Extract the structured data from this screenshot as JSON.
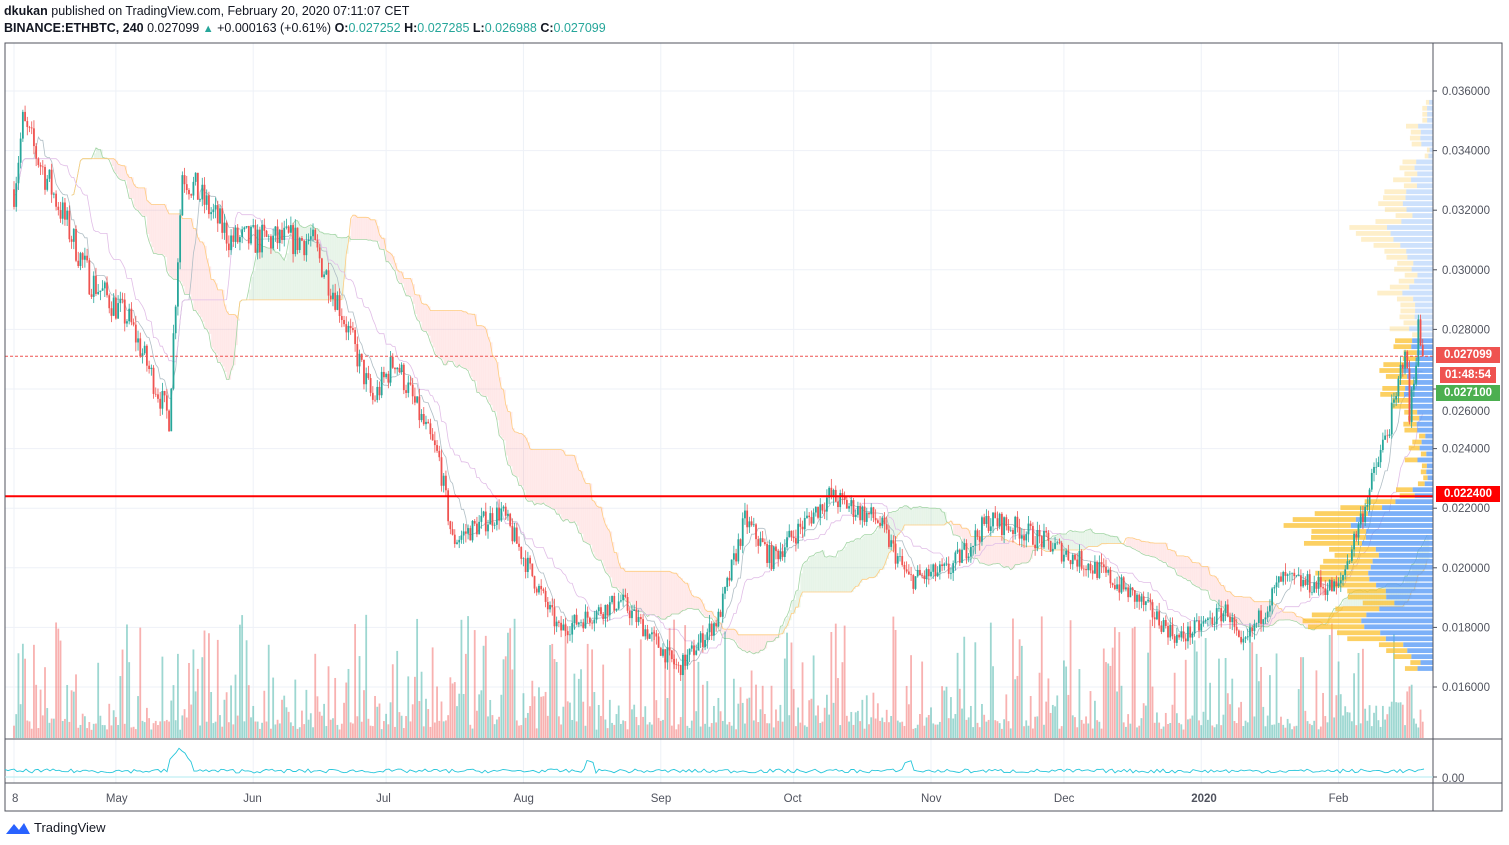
{
  "header": {
    "author": "dkukan",
    "published": "published on TradingView.com, February 20, 2020 07:11:07 CET",
    "symbol": "BINANCE:ETHBTC, 240",
    "last": "0.027099",
    "change": "+0.000163 (+0.61%)",
    "o_label": "O:",
    "o": "0.027252",
    "h_label": "H:",
    "h": "0.027285",
    "l_label": "L:",
    "l": "0.026988",
    "c_label": "C:",
    "c": "0.027099"
  },
  "tags": {
    "last_price": "0.027099",
    "countdown": "01:48:54",
    "level_green": "0.027100",
    "support_line": "0.022400"
  },
  "indicator": {
    "zero_label": "0.00"
  },
  "logo": {
    "text": "TradingView"
  },
  "colors": {
    "up": "#26a69a",
    "down": "#ef5350",
    "support": "#ff0000",
    "vp_up": "#5b9cf6",
    "vp_down": "#fbc02d"
  },
  "chart_data": {
    "type": "candlestick",
    "title": "BINANCE:ETHBTC, 240",
    "ylim": [
      0.0148,
      0.0375
    ],
    "yticks": [
      "0.016000",
      "0.018000",
      "0.020000",
      "0.022000",
      "0.024000",
      "0.026000",
      "0.028000",
      "0.030000",
      "0.032000",
      "0.034000",
      "0.036000"
    ],
    "xticks": [
      {
        "label": "8",
        "day": 0
      },
      {
        "label": "May",
        "day": 23
      },
      {
        "label": "Jun",
        "day": 54
      },
      {
        "label": "Jul",
        "day": 84
      },
      {
        "label": "Aug",
        "day": 115
      },
      {
        "label": "Sep",
        "day": 146
      },
      {
        "label": "Oct",
        "day": 176
      },
      {
        "label": "Nov",
        "day": 207
      },
      {
        "label": "Dec",
        "day": 237
      },
      {
        "label": "2020",
        "day": 268
      },
      {
        "label": "Feb",
        "day": 299
      }
    ],
    "x_unit": "days since 2019-04-08",
    "price_path": [
      [
        0,
        0.0327
      ],
      [
        2,
        0.0349
      ],
      [
        10,
        0.0322
      ],
      [
        17,
        0.0297
      ],
      [
        26,
        0.0283
      ],
      [
        35,
        0.025
      ],
      [
        38,
        0.0333
      ],
      [
        49,
        0.031
      ],
      [
        62,
        0.031
      ],
      [
        67,
        0.031
      ],
      [
        73,
        0.029
      ],
      [
        81,
        0.0256
      ],
      [
        86,
        0.027
      ],
      [
        96,
        0.0236
      ],
      [
        99,
        0.0209
      ],
      [
        110,
        0.0219
      ],
      [
        123,
        0.0179
      ],
      [
        137,
        0.0189
      ],
      [
        150,
        0.0166
      ],
      [
        159,
        0.0183
      ],
      [
        165,
        0.0216
      ],
      [
        171,
        0.0203
      ],
      [
        184,
        0.0224
      ],
      [
        195,
        0.0216
      ],
      [
        202,
        0.0196
      ],
      [
        211,
        0.0199
      ],
      [
        220,
        0.0216
      ],
      [
        227,
        0.0213
      ],
      [
        245,
        0.0199
      ],
      [
        254,
        0.0189
      ],
      [
        263,
        0.0176
      ],
      [
        274,
        0.0186
      ],
      [
        277,
        0.0172
      ],
      [
        286,
        0.0196
      ],
      [
        299,
        0.0193
      ],
      [
        306,
        0.0226
      ],
      [
        312,
        0.0256
      ],
      [
        314,
        0.0276
      ],
      [
        315,
        0.025
      ],
      [
        317,
        0.028
      ],
      [
        318,
        0.0271
      ]
    ],
    "horizontal_lines": [
      {
        "price": 0.027099,
        "style": "dashed"
      },
      {
        "price": 0.0224,
        "style": "solid"
      }
    ],
    "indicators": [
      "Ichimoku Cloud",
      "Volume",
      "Volume Profile",
      "Oscillator"
    ]
  }
}
